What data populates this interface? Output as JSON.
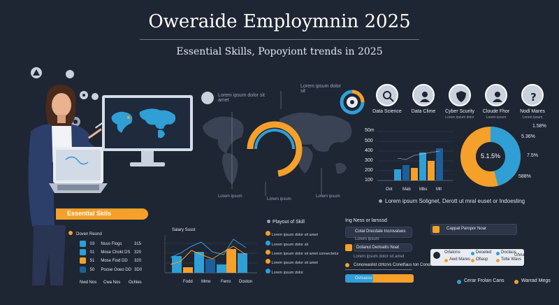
{
  "header": {
    "title": "Oweraide Employmnin 2025",
    "subtitle": "Essential Skills,  Popoyiont trends in 2025"
  },
  "colors": {
    "background": "#1e2533",
    "orange": "#f5a02a",
    "blue": "#2f9fd6",
    "dark_blue": "#1c5f99"
  },
  "map_labels": {
    "top_left": "Lorem ipsum dolor sit amet",
    "top_center": "Lorem ipsum dolor sit",
    "bottom_1": "Lorem ipsum",
    "bottom_2": "Lorem ipsum",
    "bottom_3": "Lorem ipsum"
  },
  "roles": [
    {
      "label": "Data Science",
      "sub": "",
      "icon": "magnifier-icon"
    },
    {
      "label": "Data Clime",
      "sub": "",
      "icon": "person-icon"
    },
    {
      "label": "Cyber Scurity",
      "sub": "Lorem ipsum dolor",
      "icon": "shield-icon"
    },
    {
      "label": "Cloude Fhor",
      "sub": "Lorem ipsum",
      "icon": "person-icon"
    },
    {
      "label": "Nodl Mares",
      "sub": "Lorem ipsum",
      "icon": "question-icon"
    }
  ],
  "growth_chart": {
    "yticks": [
      "50m",
      "500",
      "400",
      "300",
      "200",
      "100"
    ],
    "xticks": [
      "Oot",
      "Mab",
      "Mbs",
      "Mlt"
    ]
  },
  "donut": {
    "center": "5.1.5%",
    "labels": [
      "1.58%",
      "5.36%",
      "7.5%",
      "588%"
    ]
  },
  "lorem_line": "Lorem ipsum Solignet, Derott ut mral euset or Indoesling",
  "essential_skills": {
    "title": "Essential Skils",
    "header": "Doven Reond",
    "rows": [
      {
        "n": "03",
        "label": "Nsso Flogs",
        "val": "315"
      },
      {
        "n": "01",
        "label": "Mose Chokt DS",
        "val": "320"
      },
      {
        "n": "51",
        "label": "Mose Fiod DD",
        "val": "320"
      },
      {
        "n": "50",
        "label": "Poose Ooeo DD",
        "val": "3D0"
      }
    ],
    "footer": [
      "Nwd Nos",
      "Cwa Nos",
      "Ochles"
    ]
  },
  "salary_chart": {
    "title": "Salary Susst",
    "xticks": [
      "Fodd",
      "Mmo",
      "Ferro",
      "Doston"
    ]
  },
  "playout": {
    "title": "Playout of Skill",
    "rows": [
      "Lorem ipsum dolor sit amet",
      "Lorem ipsum dolor sit",
      "Lorem ipsum dolor sit amet consectetur",
      "Lorem ipsum dolor sit amet",
      "Lorem ipsum dolor"
    ]
  },
  "right_panel": {
    "title": "Ing Ness or larsssd",
    "rows": [
      "Cotat Drecdale Incrovalues",
      "Lorem ipsum",
      "Dotanut Derloatts Noat",
      "Lorem ipsum dolor sit amet",
      "Conoreaslist ctrtcrvs Conetfaus ton Conor",
      "Ostsaoss"
    ],
    "cta": "Cappat Paropor Noar",
    "options_title": "Orlatons",
    "options": [
      "Deoeled",
      "Doclaus",
      "Ghrialt",
      "Awd Mares",
      "Ofiasp",
      "Tolte Wavs"
    ],
    "footer": [
      "Cerar Frolan Cans",
      "Warrad Megs"
    ]
  }
}
